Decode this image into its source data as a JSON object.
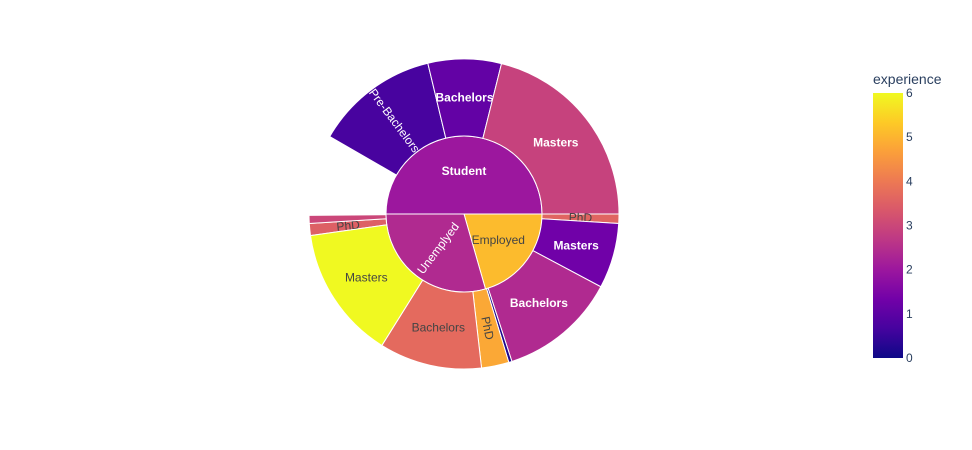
{
  "chart_data": {
    "type": "sunburst",
    "colorbar": {
      "title": "experience",
      "range": [
        0,
        6
      ],
      "ticks": [
        "0",
        "1",
        "2",
        "3",
        "4",
        "5",
        "6"
      ]
    },
    "colorscale": [
      "#0d0887",
      "#46039f",
      "#7201a8",
      "#9c179e",
      "#bd3786",
      "#d8576b",
      "#ed7953",
      "#fb9f3a",
      "#fdca26",
      "#f0f921"
    ],
    "inner": [
      {
        "label": "Student",
        "start": 270,
        "end": 90,
        "color": 2.0,
        "text_color": "#ffffff",
        "bold": true
      },
      {
        "label": "Employed",
        "start": 90,
        "end": 164,
        "color": 5.1,
        "text_color": "#444444",
        "bold": false
      },
      {
        "label": "Unemplyed",
        "start": 164,
        "end": 270,
        "color": 2.4,
        "text_color": "#ffffff",
        "bold": false,
        "radial": true
      }
    ],
    "outer": [
      {
        "label": "PhD",
        "parent": "Student",
        "start": 262,
        "end": 266.5,
        "color": 3.5,
        "text_color": "#444444",
        "bold": false,
        "radial": true
      },
      {
        "label": "Pre-Bachelors",
        "parent": "Student",
        "start": 300,
        "end": 346.5,
        "color": 0.7,
        "text_color": "#ffffff",
        "bold": false,
        "radial": true
      },
      {
        "label": "Bachelors",
        "parent": "Student",
        "start": 346.5,
        "end": 14,
        "color": 1.1,
        "text_color": "#ffffff",
        "bold": true
      },
      {
        "label": "Masters",
        "parent": "Student",
        "start": 14,
        "end": 90,
        "color": 2.9,
        "text_color": "#ffffff",
        "bold": true
      },
      {
        "label": "",
        "parent": "Student",
        "start": 266.5,
        "end": 269.5,
        "color": 3.0,
        "text_color": "#ffffff",
        "bold": false
      },
      {
        "label": "PhD",
        "parent": "Unemplyed",
        "start": 90,
        "end": 93.5,
        "color": 3.6,
        "text_color": "#444444",
        "bold": false,
        "radial": true
      },
      {
        "label": "Masters",
        "parent": "Unemplyed",
        "start": 93.5,
        "end": 118,
        "color": 1.3,
        "text_color": "#ffffff",
        "bold": true
      },
      {
        "label": "Bachelors",
        "parent": "Unemplyed",
        "start": 118,
        "end": 162,
        "color": 2.4,
        "text_color": "#ffffff",
        "bold": true
      },
      {
        "label": "",
        "parent": "Unemplyed",
        "start": 162,
        "end": 163.2,
        "color": 0.2,
        "text_color": "#ffffff",
        "bold": false
      },
      {
        "label": "PhD",
        "parent": "Employed",
        "start": 163.2,
        "end": 173.5,
        "color": 4.8,
        "text_color": "#444444",
        "bold": false,
        "radial": true
      },
      {
        "label": "Bachelors",
        "parent": "Employed",
        "start": 173.5,
        "end": 212,
        "color": 3.7,
        "text_color": "#444444",
        "bold": false
      },
      {
        "label": "Masters",
        "parent": "Employed",
        "start": 212,
        "end": 262,
        "color": 6.0,
        "text_color": "#444444",
        "bold": false
      }
    ]
  }
}
